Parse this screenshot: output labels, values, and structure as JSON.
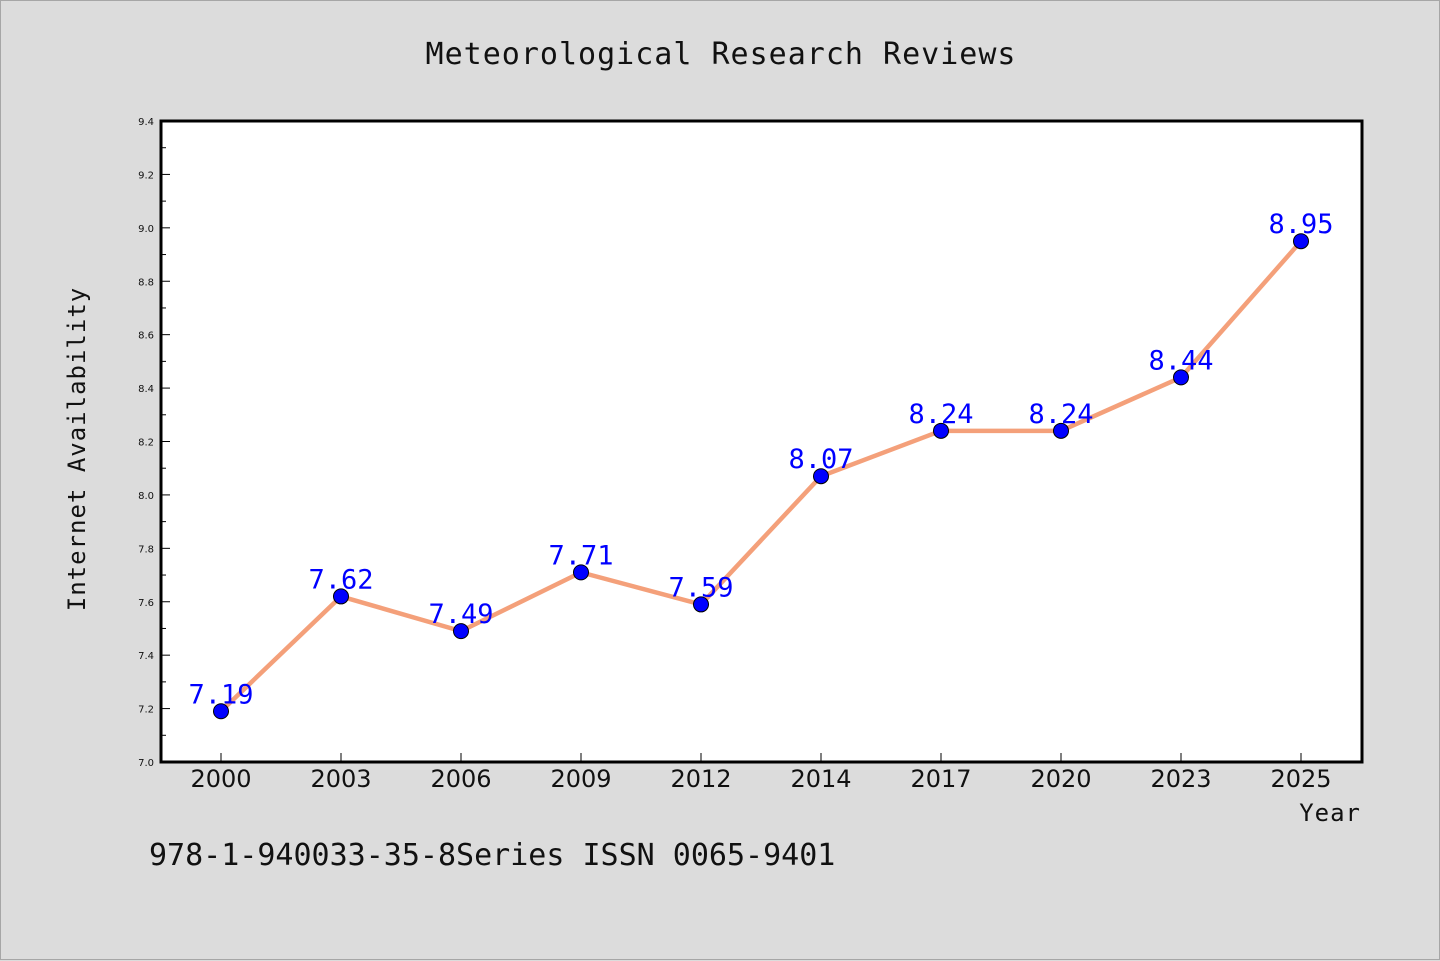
{
  "chart_data": {
    "type": "line",
    "title": "Meteorological Research Reviews",
    "xlabel": "Year",
    "ylabel": "Internet Availability",
    "categories": [
      "2000",
      "2003",
      "2006",
      "2009",
      "2012",
      "2014",
      "2017",
      "2020",
      "2023",
      "2025"
    ],
    "series": [
      {
        "values": [
          7.19,
          7.62,
          7.49,
          7.71,
          7.59,
          8.07,
          8.24,
          8.24,
          8.44,
          8.95
        ],
        "labels": [
          "7.19",
          "7.62",
          "7.49",
          "7.71",
          "7.59",
          "8.07",
          "8.24",
          "8.24",
          "8.44",
          "8.95"
        ],
        "line_color": "#f4a07a",
        "marker_color": "#0000ff"
      }
    ],
    "ylim": [
      7.0,
      9.4
    ],
    "yticks": [
      "7.0",
      "7.2",
      "7.4",
      "7.6",
      "7.8",
      "8.0",
      "8.2",
      "8.4",
      "8.6",
      "8.8",
      "9.0",
      "9.2",
      "9.4"
    ],
    "grid": false,
    "legend": "none",
    "footer": "978-1-940033-35-8Series ISSN 0065-9401"
  },
  "colors": {
    "background": "#dcdcdc",
    "plot_background": "#ffffff",
    "line": "#f4a07a",
    "marker": "#0000ff",
    "data_label": "#0000ff"
  }
}
